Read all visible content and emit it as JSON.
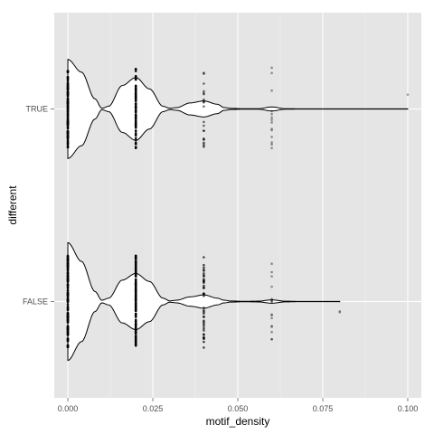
{
  "chart_data": {
    "type": "violin",
    "title": "",
    "xlabel": "motif_density",
    "ylabel": "different",
    "xlim": [
      -0.004,
      0.104
    ],
    "x_ticks": [
      0.0,
      0.025,
      0.05,
      0.075,
      0.1
    ],
    "x_tick_labels": [
      "0.000",
      "0.025",
      "0.050",
      "0.075",
      "0.100"
    ],
    "categories": [
      "FALSE",
      "TRUE"
    ],
    "grid": true,
    "background_color": "#e5e5e5",
    "grid_major_color": "#ffffff",
    "grid_minor_color": "#f2f2f2",
    "violin_outline_color": "#000000",
    "violin_fill_color": "#ffffff",
    "point_color": "#000000",
    "series": [
      {
        "category": "TRUE",
        "violin_range": [
          0.0,
          0.1
        ],
        "density_profile": [
          [
            0.0,
            0.74
          ],
          [
            0.004,
            0.55
          ],
          [
            0.008,
            0.15
          ],
          [
            0.01,
            0.01
          ],
          [
            0.012,
            0.04
          ],
          [
            0.016,
            0.35
          ],
          [
            0.02,
            0.47
          ],
          [
            0.024,
            0.3
          ],
          [
            0.028,
            0.04
          ],
          [
            0.03,
            0.01
          ],
          [
            0.032,
            0.02
          ],
          [
            0.036,
            0.09
          ],
          [
            0.04,
            0.12
          ],
          [
            0.044,
            0.07
          ],
          [
            0.046,
            0.02
          ],
          [
            0.048,
            0.008
          ],
          [
            0.052,
            0.003
          ],
          [
            0.056,
            0.004
          ],
          [
            0.06,
            0.03
          ],
          [
            0.064,
            0.004
          ],
          [
            0.068,
            0.002
          ],
          [
            0.08,
            0.002
          ],
          [
            0.1,
            0.002
          ]
        ],
        "point_groups": [
          {
            "x": 0.0,
            "count": 120,
            "jitter": 0.4,
            "alpha": 0.95
          },
          {
            "x": 0.02,
            "count": 90,
            "jitter": 0.42,
            "alpha": 0.95
          },
          {
            "x": 0.04,
            "count": 22,
            "jitter": 0.4,
            "alpha": 0.55
          },
          {
            "x": 0.06,
            "count": 14,
            "jitter": 0.45,
            "alpha": 0.4
          },
          {
            "x": 0.1,
            "count": 1,
            "jitter": 0.25,
            "alpha": 0.35
          }
        ]
      },
      {
        "category": "FALSE",
        "violin_range": [
          0.0,
          0.08
        ],
        "density_profile": [
          [
            0.0,
            0.88
          ],
          [
            0.004,
            0.6
          ],
          [
            0.008,
            0.15
          ],
          [
            0.01,
            0.02
          ],
          [
            0.012,
            0.05
          ],
          [
            0.016,
            0.32
          ],
          [
            0.02,
            0.42
          ],
          [
            0.024,
            0.3
          ],
          [
            0.028,
            0.05
          ],
          [
            0.03,
            0.01
          ],
          [
            0.032,
            0.02
          ],
          [
            0.036,
            0.07
          ],
          [
            0.04,
            0.1
          ],
          [
            0.044,
            0.05
          ],
          [
            0.046,
            0.02
          ],
          [
            0.048,
            0.008
          ],
          [
            0.052,
            0.003
          ],
          [
            0.056,
            0.006
          ],
          [
            0.06,
            0.025
          ],
          [
            0.064,
            0.005
          ],
          [
            0.068,
            0.002
          ],
          [
            0.08,
            0.002
          ]
        ],
        "point_groups": [
          {
            "x": 0.0,
            "count": 150,
            "jitter": 0.48,
            "alpha": 0.95
          },
          {
            "x": 0.02,
            "count": 140,
            "jitter": 0.48,
            "alpha": 1.0
          },
          {
            "x": 0.04,
            "count": 40,
            "jitter": 0.48,
            "alpha": 0.7
          },
          {
            "x": 0.06,
            "count": 16,
            "jitter": 0.4,
            "alpha": 0.4
          },
          {
            "x": 0.08,
            "count": 2,
            "jitter": 0.12,
            "alpha": 0.35
          }
        ]
      }
    ]
  }
}
